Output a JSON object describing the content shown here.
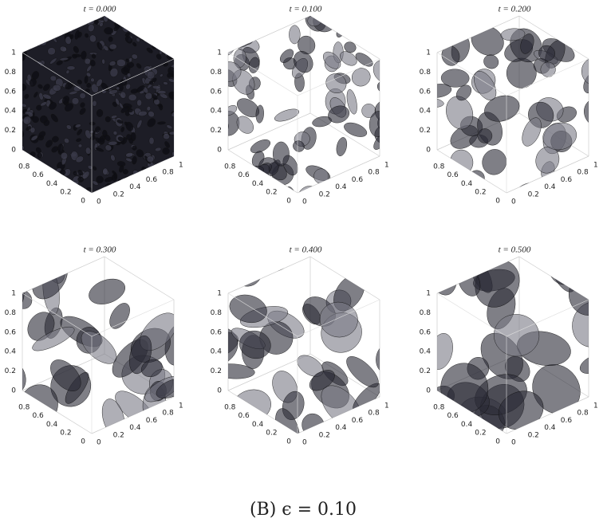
{
  "panels": [
    {
      "title": "t = 0.000"
    },
    {
      "title": "t = 0.100"
    },
    {
      "title": "t = 0.200"
    },
    {
      "title": "t = 0.300"
    },
    {
      "title": "t = 0.400"
    },
    {
      "title": "t = 0.500"
    }
  ],
  "vertical_ticks": [
    0,
    0.2,
    0.4,
    0.6,
    0.8,
    1
  ],
  "left_ticks": [
    0,
    0.2,
    0.4,
    0.6,
    0.8
  ],
  "right_ticks": [
    0,
    0.2,
    0.4,
    0.6,
    0.8,
    1
  ],
  "caption": "(B) ϵ = 0.10"
}
